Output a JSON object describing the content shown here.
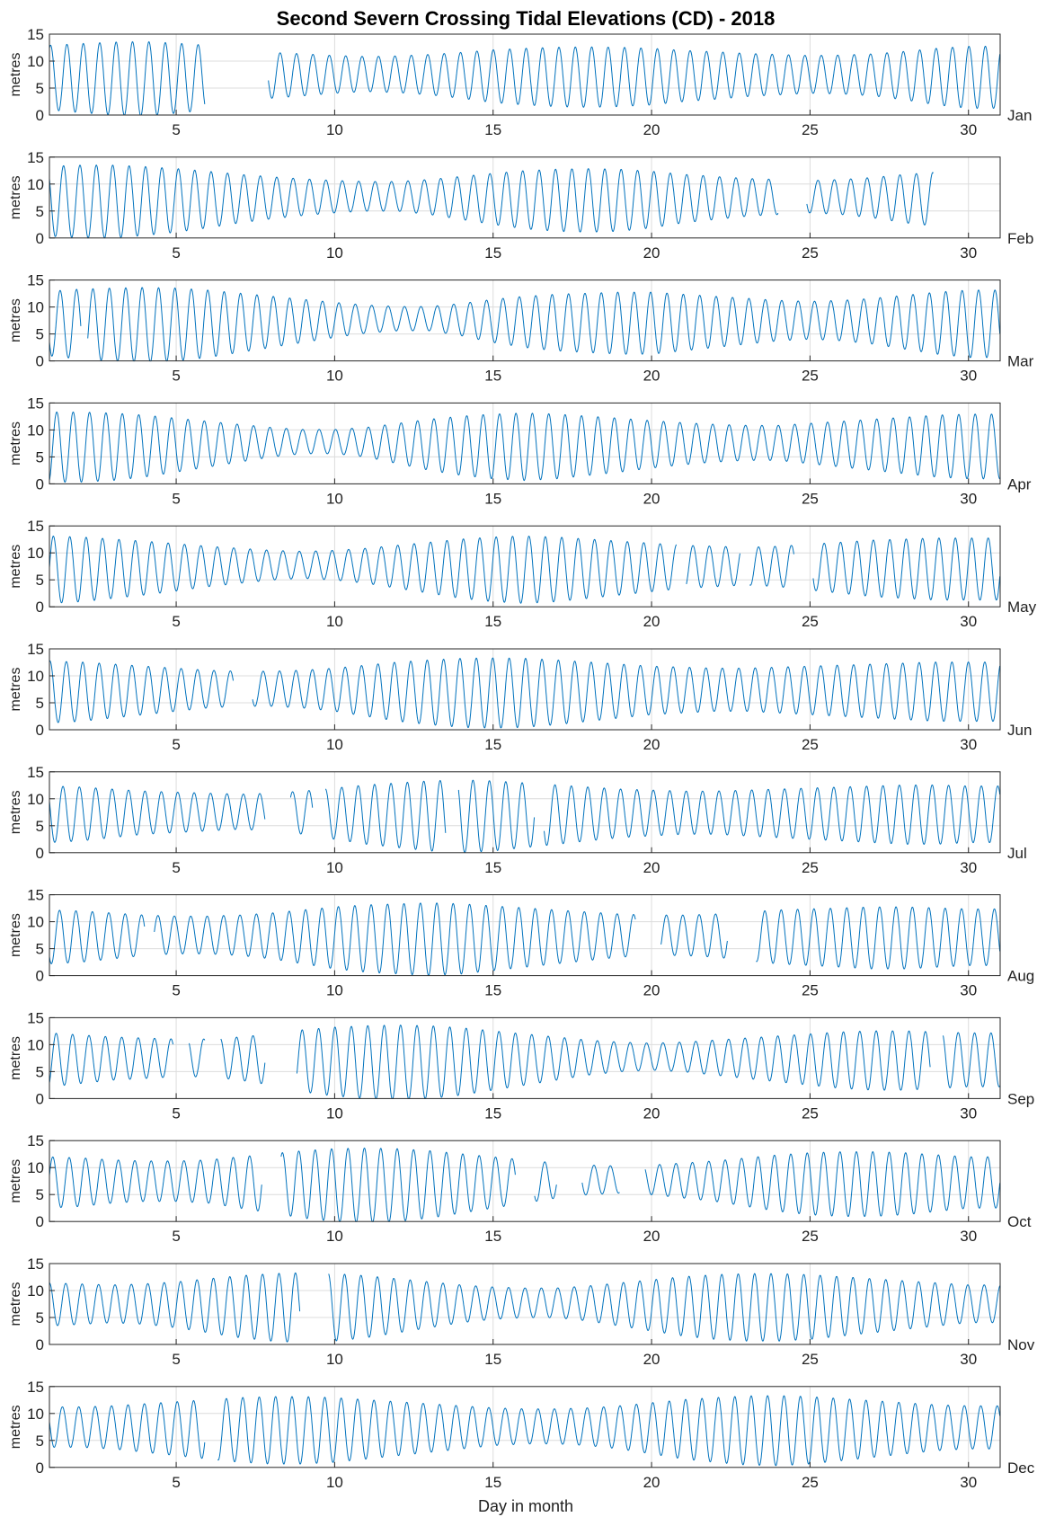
{
  "chart_data": {
    "type": "line",
    "title": "Second Severn Crossing Tidal Elevations (CD) - 2018",
    "xlabel": "Day in month",
    "ylabel": "metres",
    "xlim": [
      1,
      31
    ],
    "ylim": [
      0,
      15
    ],
    "xticks": [
      5,
      10,
      15,
      20,
      25,
      30
    ],
    "yticks": [
      0,
      5,
      10,
      15
    ],
    "grid": true,
    "color": "#0072bd",
    "months": [
      {
        "name": "Jan",
        "lunar": [
          0.8,
          2.0,
          3.0,
          4.2,
          5.3,
          6.0,
          7.5,
          8.9,
          10.0,
          11.2,
          12.2,
          13.3,
          14.2,
          15.2,
          16.3,
          17.3,
          18.4,
          19.4,
          20.4,
          21.4,
          22.3,
          23.2,
          24.5,
          25.6,
          26.7,
          27.8,
          28.8,
          30.0,
          31.0
        ],
        "gaps": [
          [
            5.9,
            7.9
          ]
        ]
      },
      {
        "name": "Feb",
        "lunar": [
          1.0,
          2.1,
          3.2,
          4.2,
          5.3,
          6.3,
          7.3,
          8.5,
          9.7,
          11.0,
          12.3,
          13.5,
          14.8,
          15.9,
          16.9,
          17.9,
          18.9,
          19.9,
          20.8,
          21.7,
          22.5,
          23.3,
          24.0,
          24.7,
          25.2,
          25.7,
          26.5,
          27.5,
          28.6
        ],
        "gaps": [
          [
            24.0,
            24.9
          ],
          [
            28.9,
            31.5
          ]
        ]
      },
      {
        "name": "Mar",
        "lunar": [
          1.0,
          1.9,
          2.9,
          3.7,
          4.5,
          5.4,
          6.3,
          7.3,
          8.4,
          9.6,
          10.7,
          11.9,
          13.0,
          14.3,
          15.5,
          16.6,
          17.7,
          18.6,
          19.6,
          20.6,
          21.6,
          22.6,
          23.6,
          24.7,
          25.7,
          26.8,
          27.9,
          29.0,
          29.9,
          30.9
        ],
        "gaps": [
          [
            2.0,
            2.2
          ]
        ]
      },
      {
        "name": "Apr",
        "lunar": [
          1.0,
          2.0,
          2.9,
          3.8,
          4.6,
          5.4,
          6.2,
          7.0,
          7.8,
          8.6,
          9.4,
          10.2,
          11.0,
          11.8,
          12.6,
          13.4,
          14.2,
          15.0,
          15.8,
          16.6,
          17.4,
          18.2,
          19.0,
          19.9,
          20.9,
          21.8,
          22.8,
          23.8,
          24.8,
          25.8,
          26.8,
          27.8,
          28.8,
          29.8,
          30.9
        ],
        "gaps": []
      },
      {
        "name": "May",
        "lunar": [
          1.0,
          1.9,
          2.9,
          3.9,
          5.0,
          6.1,
          7.2,
          8.3,
          9.4,
          10.5,
          11.7,
          12.8,
          14.0,
          15.1,
          16.2,
          17.3,
          18.3,
          19.3,
          20.3,
          21.2,
          22.1,
          23.0,
          24.0,
          25.0,
          26.0,
          27.0,
          28.1,
          29.2,
          30.3
        ],
        "gaps": [
          [
            20.8,
            21.1
          ],
          [
            22.8,
            23.1
          ],
          [
            24.5,
            25.1
          ]
        ]
      },
      {
        "name": "Jun",
        "lunar": [
          1.0,
          2.0,
          3.0,
          4.1,
          5.2,
          6.3,
          7.5,
          8.7,
          9.8,
          10.9,
          12.0,
          13.0,
          14.0,
          14.9,
          15.8,
          16.8,
          17.7,
          18.7,
          19.7,
          20.7,
          21.8,
          22.8,
          23.9,
          25.0,
          26.0,
          27.1,
          28.1,
          29.1,
          30.1
        ],
        "gaps": [
          [
            6.8,
            7.4
          ]
        ]
      },
      {
        "name": "Jul",
        "lunar": [
          1.0,
          1.9,
          2.9,
          3.9,
          5.0,
          6.1,
          7.2,
          8.3,
          9.5,
          10.6,
          11.7,
          12.7,
          13.7,
          14.6,
          15.5,
          16.4,
          17.3,
          18.2,
          19.2,
          20.2,
          21.2,
          22.2,
          23.2,
          24.3,
          25.3,
          26.4,
          27.4,
          28.4,
          29.3,
          30.2
        ],
        "gaps": [
          [
            7.8,
            8.6
          ],
          [
            9.3,
            9.7
          ],
          [
            13.5,
            13.9
          ],
          [
            16.3,
            16.6
          ]
        ]
      },
      {
        "name": "Aug",
        "lunar": [
          1.0,
          1.9,
          2.8,
          3.7,
          4.7,
          5.7,
          6.8,
          7.9,
          9.0,
          10.0,
          11.0,
          12.0,
          13.0,
          13.9,
          14.8,
          15.7,
          16.6,
          17.6,
          18.6,
          19.6,
          20.7,
          21.8,
          22.9,
          24.0,
          25.1,
          26.1,
          27.1,
          28.1,
          29.0,
          29.9,
          30.8
        ],
        "gaps": [
          [
            4.0,
            4.3
          ],
          [
            19.5,
            20.3
          ],
          [
            22.4,
            23.3
          ]
        ]
      },
      {
        "name": "Sep",
        "lunar": [
          1.0,
          1.9,
          2.9,
          3.9,
          5.0,
          6.1,
          7.3,
          8.4,
          9.6,
          10.7,
          11.8,
          12.8,
          13.8,
          14.8,
          15.7,
          16.6,
          17.5,
          18.4,
          19.3,
          20.2,
          21.1,
          22.1,
          23.1,
          24.1,
          25.1,
          26.2,
          27.2,
          28.2,
          29.1,
          30.0,
          30.9
        ],
        "gaps": [
          [
            4.9,
            5.4
          ],
          [
            5.9,
            6.4
          ],
          [
            7.8,
            8.8
          ],
          [
            28.8,
            29.2
          ]
        ]
      },
      {
        "name": "Oct",
        "lunar": [
          1.0,
          1.9,
          2.9,
          4.0,
          5.1,
          6.2,
          7.3,
          8.4,
          9.5,
          10.5,
          11.5,
          12.5,
          13.5,
          14.4,
          15.4,
          16.4,
          17.5,
          18.6,
          19.7,
          20.8,
          21.9,
          23.0,
          24.1,
          25.1,
          26.1,
          27.1,
          28.1,
          29.0,
          29.9,
          30.8
        ],
        "gaps": [
          [
            7.7,
            8.3
          ],
          [
            15.7,
            16.3
          ],
          [
            17.0,
            17.8
          ],
          [
            19.0,
            19.8
          ]
        ]
      },
      {
        "name": "Nov",
        "lunar": [
          1.0,
          2.1,
          3.2,
          4.2,
          5.2,
          6.2,
          7.2,
          8.1,
          9.0,
          9.9,
          10.8,
          11.7,
          12.7,
          13.7,
          14.7,
          15.8,
          16.9,
          18.0,
          19.1,
          20.2,
          21.3,
          22.3,
          23.3,
          24.3,
          25.3,
          26.3,
          27.3,
          28.3,
          29.2,
          30.2
        ],
        "gaps": [
          [
            8.9,
            9.8
          ]
        ]
      },
      {
        "name": "Dec",
        "lunar": [
          1.0,
          2.0,
          3.0,
          4.0,
          5.0,
          6.0,
          7.0,
          8.0,
          9.0,
          10.0,
          11.0,
          12.0,
          13.0,
          14.0,
          15.0,
          16.0,
          17.0,
          18.0,
          19.0,
          20.0,
          21.0,
          22.0,
          23.0,
          24.0,
          25.0,
          26.0,
          27.0,
          28.0,
          29.0,
          30.0,
          31.0
        ],
        "gaps": [
          [
            5.9,
            6.3
          ]
        ]
      }
    ],
    "tidal_range_m": {
      "Jan": [
        12.0,
        12.8,
        13.5,
        13.8,
        13.0,
        12.0,
        9.5,
        8.5,
        7.8,
        7.0,
        6.5,
        6.8,
        7.5,
        8.5,
        9.8,
        10.5,
        11.0,
        11.2,
        11.0,
        10.5,
        9.5,
        8.8,
        8.0,
        7.5,
        7.0,
        7.2,
        7.8,
        9.0,
        10.5,
        11.5
      ],
      "Feb": [
        13.0,
        13.5,
        13.5,
        12.8,
        11.8,
        10.5,
        9.0,
        7.8,
        6.8,
        6.0,
        5.5,
        5.5,
        6.5,
        8.0,
        9.5,
        10.8,
        11.5,
        11.8,
        11.5,
        10.5,
        9.0,
        8.0,
        7.0,
        6.5,
        6.0,
        6.5,
        7.5,
        9.0,
        10.0,
        11.0
      ],
      "Mar": [
        12.0,
        13.0,
        13.5,
        13.8,
        13.5,
        12.5,
        11.0,
        9.5,
        8.0,
        6.5,
        5.2,
        4.5,
        4.5,
        6.0,
        8.0,
        9.5,
        10.5,
        11.0,
        11.5,
        11.5,
        10.5,
        9.5,
        8.5,
        7.5,
        7.0,
        7.5,
        8.5,
        10.0,
        11.5,
        12.5
      ],
      "Apr": [
        13.0,
        13.0,
        12.5,
        11.5,
        10.0,
        8.5,
        7.0,
        5.5,
        4.5,
        4.5,
        5.5,
        7.5,
        9.5,
        11.0,
        12.0,
        12.5,
        12.0,
        11.0,
        10.0,
        8.8,
        7.8,
        7.0,
        6.5,
        6.5,
        7.5,
        8.5,
        9.5,
        10.5,
        11.5,
        12.0
      ],
      "May": [
        12.5,
        12.0,
        11.0,
        10.0,
        8.8,
        7.5,
        6.5,
        5.5,
        5.0,
        5.5,
        6.5,
        8.0,
        9.5,
        11.0,
        12.0,
        12.5,
        12.0,
        11.0,
        10.0,
        9.0,
        8.0,
        7.5,
        7.0,
        7.5,
        8.5,
        9.5,
        10.5,
        11.0,
        11.5,
        11.5
      ],
      "Jun": [
        11.5,
        11.0,
        10.0,
        9.0,
        8.0,
        7.0,
        6.5,
        6.5,
        7.0,
        8.0,
        9.5,
        11.0,
        12.0,
        12.8,
        13.0,
        12.8,
        12.0,
        11.0,
        10.0,
        9.0,
        8.5,
        8.0,
        8.0,
        8.5,
        9.0,
        9.5,
        10.0,
        10.5,
        11.0,
        11.0
      ],
      "Jul": [
        10.5,
        10.0,
        9.0,
        8.0,
        7.5,
        7.0,
        6.5,
        7.0,
        8.0,
        9.5,
        11.0,
        12.0,
        13.0,
        13.5,
        13.0,
        12.0,
        11.0,
        10.0,
        9.0,
        8.5,
        8.0,
        8.0,
        8.5,
        9.0,
        9.5,
        10.0,
        10.5,
        11.0,
        11.0,
        10.5
      ],
      "Aug": [
        10.0,
        9.5,
        8.5,
        7.5,
        7.0,
        7.0,
        7.5,
        8.5,
        10.0,
        11.5,
        12.5,
        13.0,
        13.5,
        13.0,
        12.0,
        11.0,
        10.0,
        9.0,
        8.0,
        7.5,
        7.5,
        8.0,
        9.0,
        10.0,
        10.5,
        11.0,
        11.5,
        11.5,
        11.0,
        10.5
      ],
      "Sep": [
        10.0,
        9.0,
        8.0,
        7.5,
        7.0,
        7.0,
        8.0,
        9.5,
        11.5,
        12.8,
        13.5,
        13.8,
        13.5,
        12.5,
        11.0,
        9.5,
        8.0,
        6.5,
        5.5,
        5.0,
        5.5,
        6.5,
        7.5,
        8.5,
        9.5,
        10.5,
        11.0,
        11.0,
        10.5,
        10.0
      ],
      "Oct": [
        9.5,
        9.0,
        8.0,
        7.5,
        7.5,
        8.0,
        9.5,
        11.0,
        12.5,
        13.5,
        13.8,
        13.5,
        12.5,
        11.0,
        9.5,
        8.0,
        6.5,
        5.5,
        5.0,
        5.5,
        6.5,
        7.5,
        9.0,
        10.5,
        11.5,
        12.0,
        12.0,
        11.5,
        10.5,
        9.5
      ],
      "Nov": [
        8.0,
        7.5,
        7.0,
        7.5,
        8.5,
        10.0,
        11.5,
        12.5,
        13.0,
        12.5,
        11.5,
        10.0,
        8.5,
        7.0,
        6.0,
        5.5,
        5.5,
        6.5,
        8.0,
        9.5,
        11.0,
        12.0,
        12.5,
        12.5,
        12.0,
        11.0,
        10.0,
        9.0,
        8.0,
        7.0
      ],
      "Dec": [
        7.5,
        7.5,
        8.0,
        9.0,
        10.0,
        11.0,
        12.0,
        12.5,
        12.5,
        12.0,
        11.0,
        10.0,
        9.0,
        8.0,
        7.0,
        6.5,
        6.5,
        7.0,
        8.0,
        9.5,
        11.0,
        12.0,
        12.8,
        13.0,
        12.5,
        11.5,
        10.5,
        9.5,
        8.5,
        8.0
      ]
    }
  }
}
